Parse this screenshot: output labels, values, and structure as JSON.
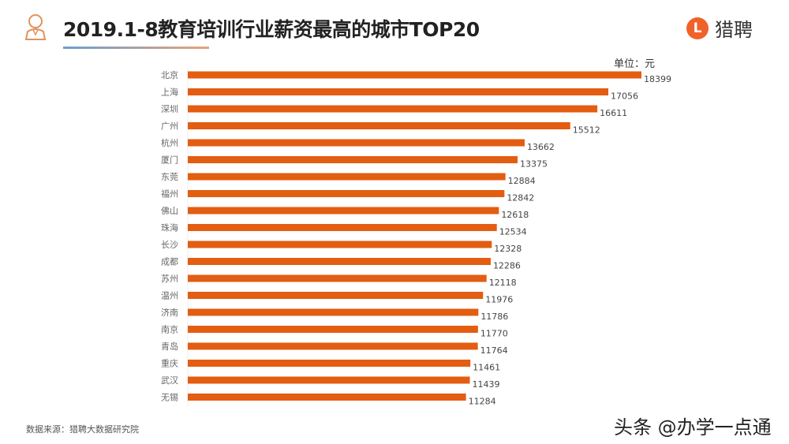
{
  "header": {
    "title": "2019.1-8教育培训行业薪资最高的城市TOP20",
    "logo_mark": "L",
    "logo_text": "猎聘",
    "icon": "person-icon"
  },
  "footer": {
    "source": "数据来源：猎聘大数据研究院",
    "watermark": "头条 @办学一点通"
  },
  "colors": {
    "bar": "#e35d12",
    "accent": "#f0622a"
  },
  "chart_data": {
    "type": "bar",
    "orientation": "horizontal",
    "title": "2019.1-8教育培训行业薪资最高的城市TOP20",
    "unit_label": "单位：元",
    "categories": [
      "北京",
      "上海",
      "深圳",
      "广州",
      "杭州",
      "厦门",
      "东莞",
      "福州",
      "佛山",
      "珠海",
      "长沙",
      "成都",
      "苏州",
      "温州",
      "济南",
      "南京",
      "青岛",
      "重庆",
      "武汉",
      "无锡"
    ],
    "values": [
      18399,
      17056,
      16611,
      15512,
      13662,
      13375,
      12884,
      12842,
      12618,
      12534,
      12328,
      12286,
      12118,
      11976,
      11786,
      11770,
      11764,
      11461,
      11439,
      11284
    ],
    "xlim": [
      0,
      18400
    ],
    "grid": false,
    "data_labels": true
  }
}
